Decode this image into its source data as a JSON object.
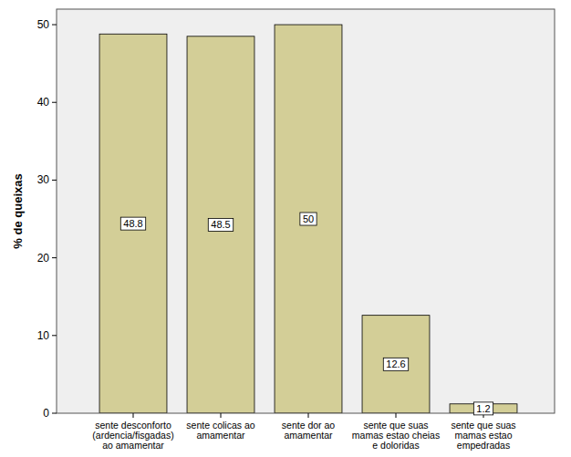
{
  "chart_data": {
    "type": "bar",
    "y_label": "% de queixas",
    "categories": [
      "sente desconforto (ardencia/fisgadas) ao amamentar",
      "sente colicas ao amamentar",
      "sente dor ao amamentar",
      "sente que suas mamas estao cheias e doloridas",
      "sente que suas mamas estao empedradas"
    ],
    "values": [
      48.8,
      48.5,
      50,
      12.6,
      1.2
    ],
    "color": "#d3ce97",
    "ylim": [
      0,
      52
    ],
    "yticks": [
      0,
      10,
      20,
      30,
      40,
      50
    ],
    "grid": false,
    "data_labels": true
  }
}
